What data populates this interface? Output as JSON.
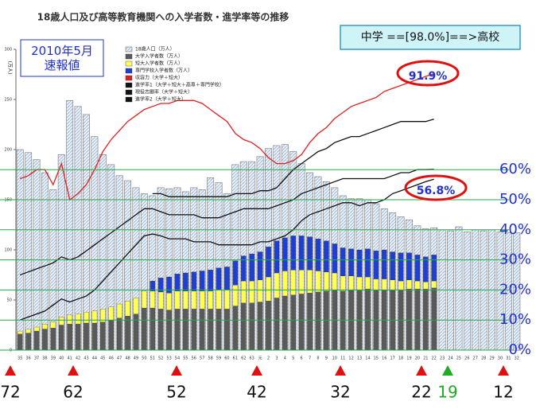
{
  "chart_data": {
    "type": "bar",
    "title": "18歳人口及び高等教育機関への入学者数・進学率等の推移",
    "ylabel": "(万人)",
    "categories": [
      "35",
      "36",
      "37",
      "38",
      "39",
      "40",
      "41",
      "42",
      "43",
      "44",
      "45",
      "46",
      "47",
      "48",
      "49",
      "50",
      "51",
      "52",
      "53",
      "54",
      "55",
      "56",
      "57",
      "58",
      "59",
      "60",
      "61",
      "62",
      "63",
      "元",
      "2",
      "3",
      "4",
      "5",
      "6",
      "7",
      "8",
      "9",
      "10",
      "11",
      "12",
      "13",
      "14",
      "15",
      "16",
      "17",
      "18",
      "19",
      "20",
      "21",
      "22",
      "23",
      "24",
      "25",
      "26",
      "27",
      "28",
      "29",
      "30",
      "31",
      "32"
    ],
    "series": [
      {
        "name": "18歳人口（万人）",
        "kind": "background",
        "color": "#d7e3f3",
        "values": [
          200,
          197,
          190,
          177,
          160,
          195,
          249,
          243,
          235,
          213,
          195,
          185,
          174,
          169,
          162,
          156,
          154,
          162,
          161,
          162,
          158,
          162,
          160,
          172,
          167,
          156,
          185,
          188,
          188,
          193,
          201,
          204,
          205,
          198,
          186,
          177,
          173,
          168,
          162,
          154,
          151,
          151,
          150,
          146,
          141,
          137,
          133,
          130,
          124,
          121,
          122,
          120,
          119,
          123,
          118,
          120,
          119,
          120,
          118,
          117,
          117
        ]
      },
      {
        "name": "大学入学者数（万人）",
        "kind": "stack",
        "color": "#5a5a5a",
        "values": [
          16,
          17,
          19,
          21,
          22,
          25,
          26,
          26,
          27,
          27,
          28,
          30,
          32,
          34,
          36,
          42,
          42,
          41,
          40,
          41,
          41,
          41,
          41,
          41,
          41,
          41,
          44,
          47,
          47,
          48,
          49,
          52,
          54,
          55,
          56,
          57,
          58,
          59,
          60,
          59,
          60,
          60,
          61,
          60,
          60,
          60,
          60,
          61,
          61,
          61,
          62,
          null,
          null,
          null,
          null,
          null,
          null,
          null,
          null,
          null,
          null
        ]
      },
      {
        "name": "短大入学者数（万人）",
        "kind": "stack",
        "color": "#ffff55",
        "values": [
          3,
          4,
          4,
          5,
          6,
          8,
          9,
          10,
          11,
          12,
          13,
          13,
          14,
          15,
          16,
          17,
          17,
          17,
          17,
          18,
          18,
          18,
          18,
          18,
          19,
          19,
          21,
          22,
          22,
          22,
          24,
          25,
          25,
          25,
          24,
          23,
          21,
          19,
          17,
          15,
          14,
          13,
          12,
          11,
          11,
          10,
          9,
          9,
          8,
          7,
          7,
          null,
          null,
          null,
          null,
          null,
          null,
          null,
          null,
          null,
          null
        ]
      },
      {
        "name": "専門学校入学者数（万人）",
        "kind": "stack",
        "color": "#1f3fd0",
        "values": [
          null,
          null,
          null,
          null,
          null,
          null,
          null,
          null,
          null,
          null,
          null,
          null,
          null,
          null,
          null,
          null,
          10,
          14,
          16,
          17,
          18,
          19,
          20,
          21,
          22,
          23,
          24,
          25,
          27,
          28,
          30,
          32,
          33,
          34,
          34,
          33,
          32,
          31,
          29,
          28,
          27,
          27,
          28,
          28,
          29,
          28,
          28,
          27,
          26,
          25,
          26,
          null,
          null,
          null,
          null,
          null,
          null,
          null,
          null,
          null,
          null
        ]
      },
      {
        "name": "収容力（大学＋短大）",
        "kind": "line",
        "axis": "y2",
        "color": "#e02020",
        "values": [
          57,
          58,
          60,
          60,
          55,
          62,
          50,
          52,
          55,
          60,
          66,
          70,
          73,
          76,
          78,
          80,
          81,
          82,
          82,
          83,
          83,
          83,
          82,
          80,
          78,
          76,
          72,
          70,
          69,
          67,
          64,
          62,
          62,
          63,
          65,
          69,
          72,
          74,
          77,
          79,
          81,
          82,
          83,
          84,
          86,
          87,
          88,
          89,
          90,
          91,
          91.9,
          null,
          null,
          null,
          null,
          null,
          null,
          null,
          null,
          null,
          null
        ]
      },
      {
        "name": "進学率1（大学＋短大＋高専＋専門学校）",
        "kind": "line",
        "axis": "y2",
        "color": "#111111",
        "values": [
          null,
          null,
          null,
          null,
          null,
          null,
          null,
          null,
          null,
          null,
          null,
          null,
          null,
          null,
          null,
          null,
          52,
          52,
          51,
          51,
          51,
          51,
          51,
          51,
          51,
          51,
          52,
          52,
          52,
          53,
          53,
          54,
          57,
          60,
          62,
          64,
          66,
          67,
          69,
          70,
          71,
          71,
          72,
          73,
          74,
          75,
          76,
          76,
          76,
          76,
          76.8,
          null,
          null,
          null,
          null,
          null,
          null,
          null,
          null,
          null,
          null
        ]
      },
      {
        "name": "現役志願率（大学＋短大）",
        "kind": "line",
        "axis": "y2",
        "color": "#111111",
        "values": [
          25,
          26,
          27,
          28,
          29,
          31,
          30,
          31,
          33,
          35,
          37,
          39,
          41,
          43,
          45,
          47,
          47,
          46,
          45,
          45,
          45,
          45,
          44,
          44,
          44,
          45,
          46,
          47,
          47,
          47,
          47,
          48,
          49,
          50,
          52,
          53,
          54,
          55,
          56,
          57,
          57,
          57,
          57,
          57,
          57,
          58,
          59,
          59,
          60,
          60,
          60.1,
          null,
          null,
          null,
          null,
          null,
          null,
          null,
          null,
          null,
          null
        ]
      },
      {
        "name": "進学率2（大学＋短大）",
        "kind": "line",
        "axis": "y2",
        "color": "#111111",
        "values": [
          10,
          11,
          12,
          13,
          15,
          17,
          16,
          17,
          18,
          20,
          23,
          26,
          29,
          32,
          35,
          38,
          38.6,
          38,
          37,
          37,
          37,
          36,
          36,
          36,
          35,
          35,
          35,
          35,
          35,
          36,
          36,
          37,
          38,
          40,
          43,
          45,
          46,
          47,
          48,
          49,
          49,
          48,
          49,
          49,
          50,
          52,
          53,
          54,
          55,
          56,
          56.8,
          null,
          null,
          null,
          null,
          null,
          null,
          null,
          null,
          null,
          null
        ]
      }
    ],
    "ylim": [
      0,
      300
    ],
    "yticks": [
      0,
      50,
      100,
      150,
      200,
      250,
      300
    ],
    "y2lim": [
      0,
      100
    ],
    "y2ticks": [
      {
        "value": 0,
        "label": "0%"
      },
      {
        "value": 10,
        "label": "10%"
      },
      {
        "value": 20,
        "label": "20%"
      },
      {
        "value": 30,
        "label": "30%"
      },
      {
        "value": 40,
        "label": "40%"
      },
      {
        "value": 50,
        "label": "50%"
      },
      {
        "value": 60,
        "label": "60%"
      }
    ],
    "y2grid": true,
    "y2grid_color": "#22aa44",
    "note_box": "2010年5月\n速報値",
    "headline_box": "中学 ==[98.0%]==>高校",
    "annotations": [
      "91.9%",
      "56.8%"
    ],
    "age_markers": [
      72,
      62,
      52,
      42,
      32,
      22,
      19,
      12
    ]
  }
}
